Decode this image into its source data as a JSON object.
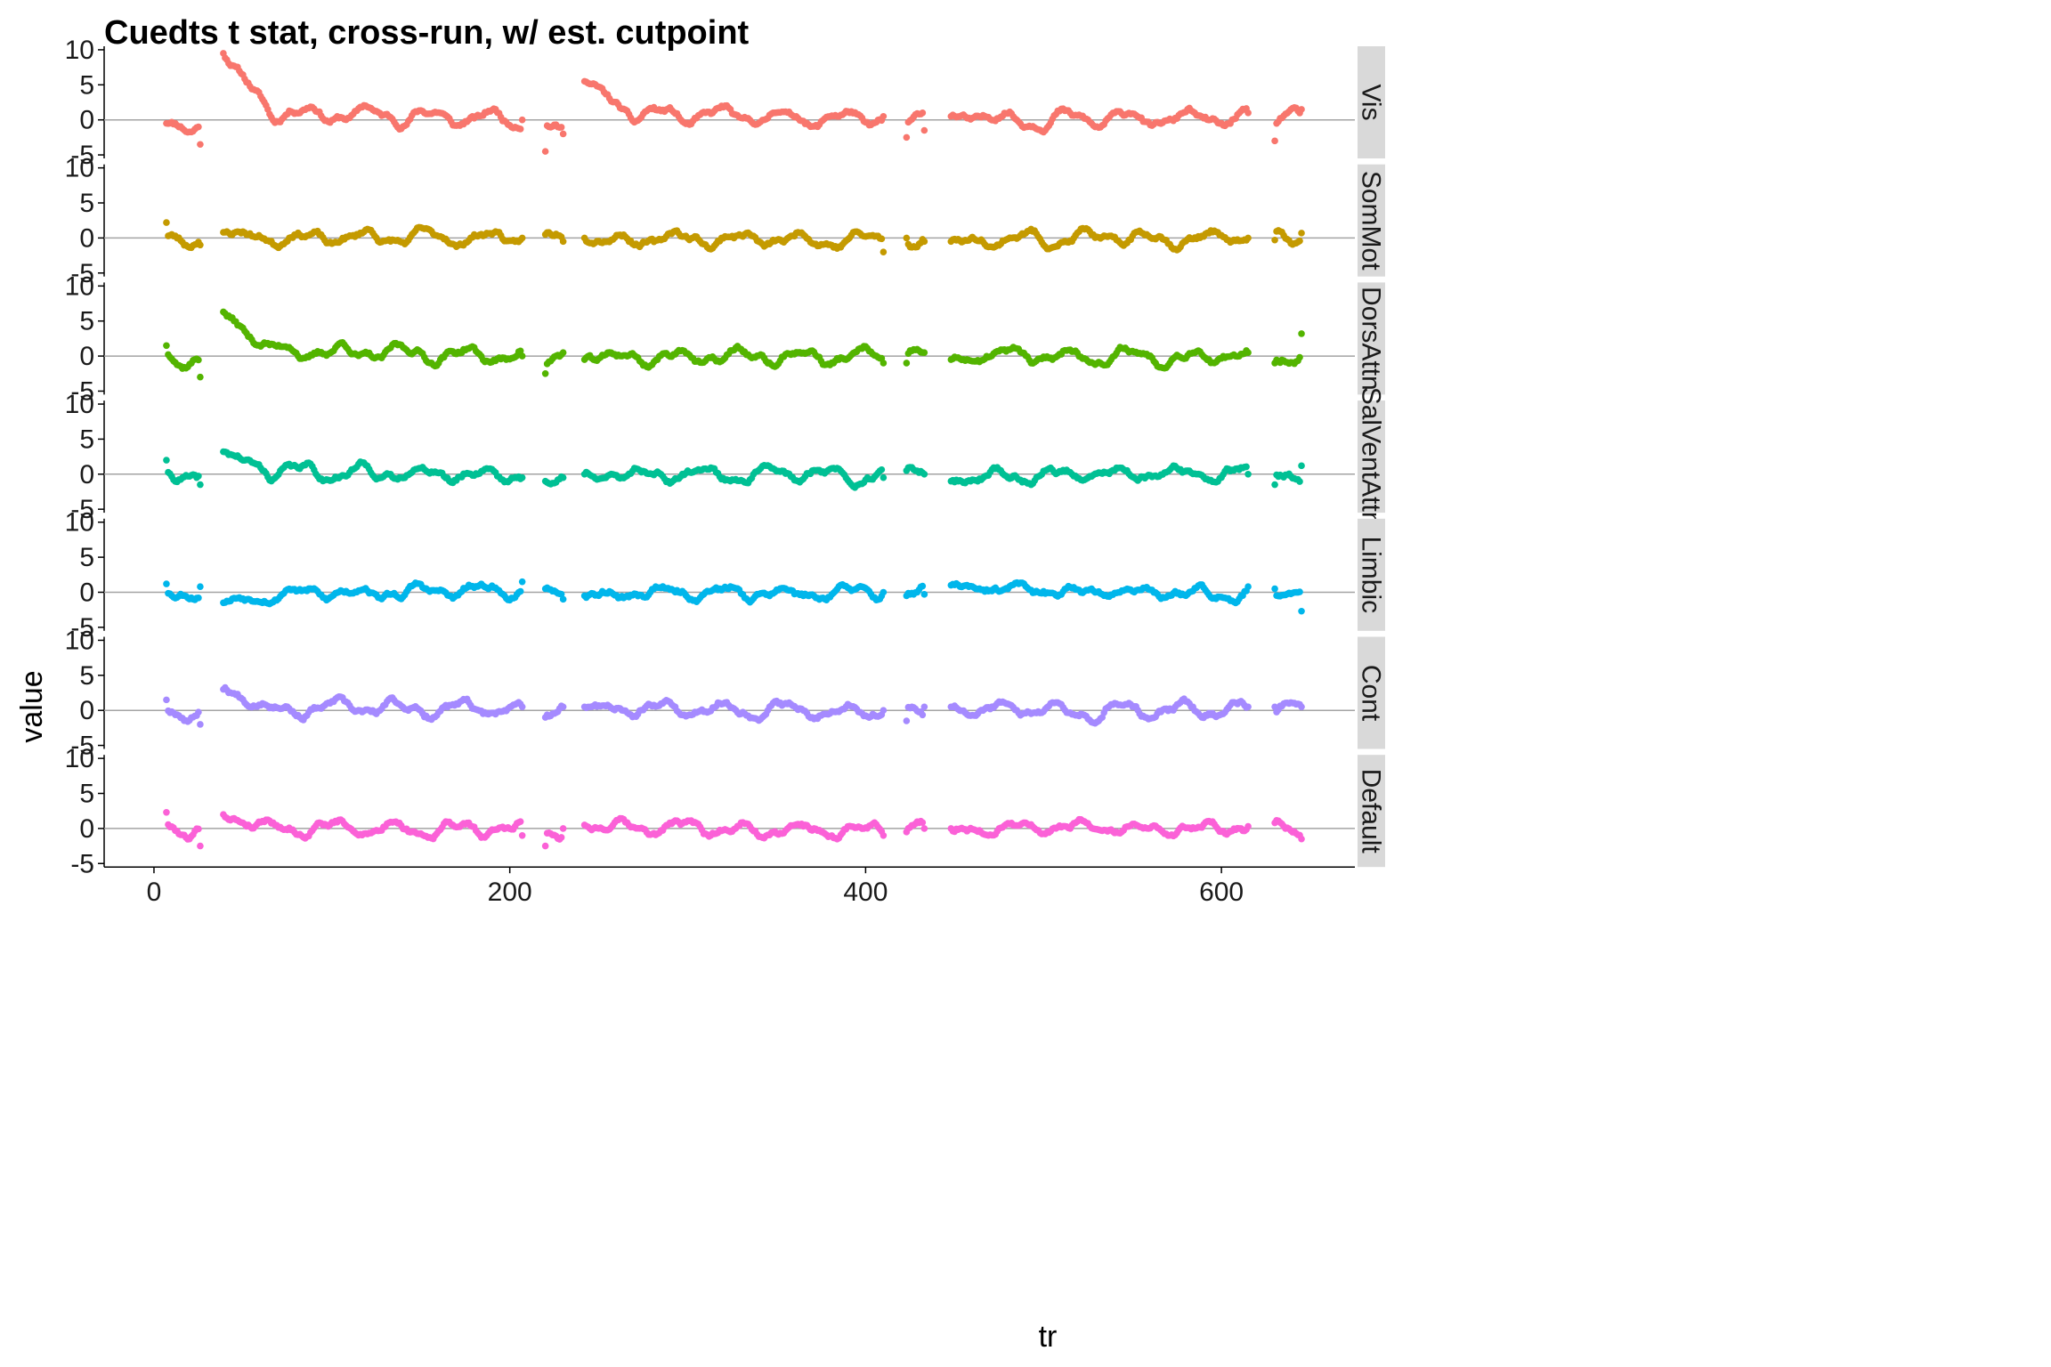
{
  "chart_data": {
    "type": "scatter",
    "title": "Cuedts t stat, cross-run, w/ est. cutpoint",
    "xlabel": "tr",
    "ylabel": "value",
    "xlim": [
      -28,
      675
    ],
    "ylim": [
      -5.5,
      10.5
    ],
    "x_ticks": [
      0,
      200,
      400,
      600
    ],
    "y_ticks": [
      -5,
      0,
      5,
      10
    ],
    "reference_line_y": 0,
    "facet_strip_position": "right",
    "runs": [
      {
        "start": 7,
        "end": 26
      },
      {
        "start": 39,
        "end": 207
      },
      {
        "start": 220,
        "end": 230
      },
      {
        "start": 242,
        "end": 410
      },
      {
        "start": 423,
        "end": 433
      },
      {
        "start": 448,
        "end": 615
      },
      {
        "start": 630,
        "end": 645
      }
    ],
    "series": [
      {
        "name": "Vis",
        "color": "#F8766D",
        "run_start_values": [
          -0.5,
          9.5,
          -4.5,
          5.5,
          -2.5,
          0.5,
          -3.0
        ],
        "run_end_values": [
          -3.5,
          0.0,
          -2.0,
          0.5,
          -1.5,
          1.0,
          1.5
        ],
        "amplitude": 1.4,
        "seed": 11
      },
      {
        "name": "SomMot",
        "color": "#C49A00",
        "run_start_values": [
          2.2,
          0.8,
          0.5,
          0.0,
          0.0,
          -0.5,
          -0.3
        ],
        "run_end_values": [
          -1.0,
          0.0,
          -0.5,
          -2.0,
          -0.5,
          0.0,
          0.7
        ],
        "amplitude": 1.2,
        "seed": 23
      },
      {
        "name": "DorsAttn",
        "color": "#53B400",
        "run_start_values": [
          1.5,
          6.3,
          -2.5,
          -0.5,
          -1.0,
          -0.5,
          -1.0
        ],
        "run_end_values": [
          -3.0,
          0.0,
          0.5,
          -1.0,
          0.5,
          0.5,
          3.2
        ],
        "amplitude": 1.3,
        "seed": 37
      },
      {
        "name": "SalVentAttn",
        "color": "#00C094",
        "run_start_values": [
          2.0,
          3.2,
          -1.0,
          0.0,
          0.5,
          -1.0,
          -1.5
        ],
        "run_end_values": [
          -1.5,
          -0.5,
          -0.5,
          -0.5,
          0.0,
          0.0,
          1.2
        ],
        "amplitude": 1.2,
        "seed": 41
      },
      {
        "name": "Limbic",
        "color": "#00B6EB",
        "run_start_values": [
          1.2,
          -1.5,
          0.5,
          -0.5,
          -0.5,
          1.0,
          0.5
        ],
        "run_end_values": [
          0.8,
          1.5,
          -1.0,
          0.0,
          -0.3,
          0.8,
          -2.7
        ],
        "amplitude": 1.0,
        "seed": 53
      },
      {
        "name": "Cont",
        "color": "#A58AFF",
        "run_start_values": [
          1.5,
          3.0,
          -1.0,
          0.5,
          -1.5,
          0.5,
          0.5
        ],
        "run_end_values": [
          -2.0,
          0.5,
          0.5,
          0.0,
          0.5,
          0.5,
          0.5
        ],
        "amplitude": 1.2,
        "seed": 67
      },
      {
        "name": "Default",
        "color": "#FB61D7",
        "run_start_values": [
          2.3,
          2.0,
          -2.5,
          0.5,
          -0.5,
          0.0,
          0.8
        ],
        "run_end_values": [
          -2.5,
          -1.0,
          0.0,
          -1.0,
          0.0,
          0.3,
          -1.5
        ],
        "amplitude": 1.2,
        "seed": 79
      }
    ]
  }
}
